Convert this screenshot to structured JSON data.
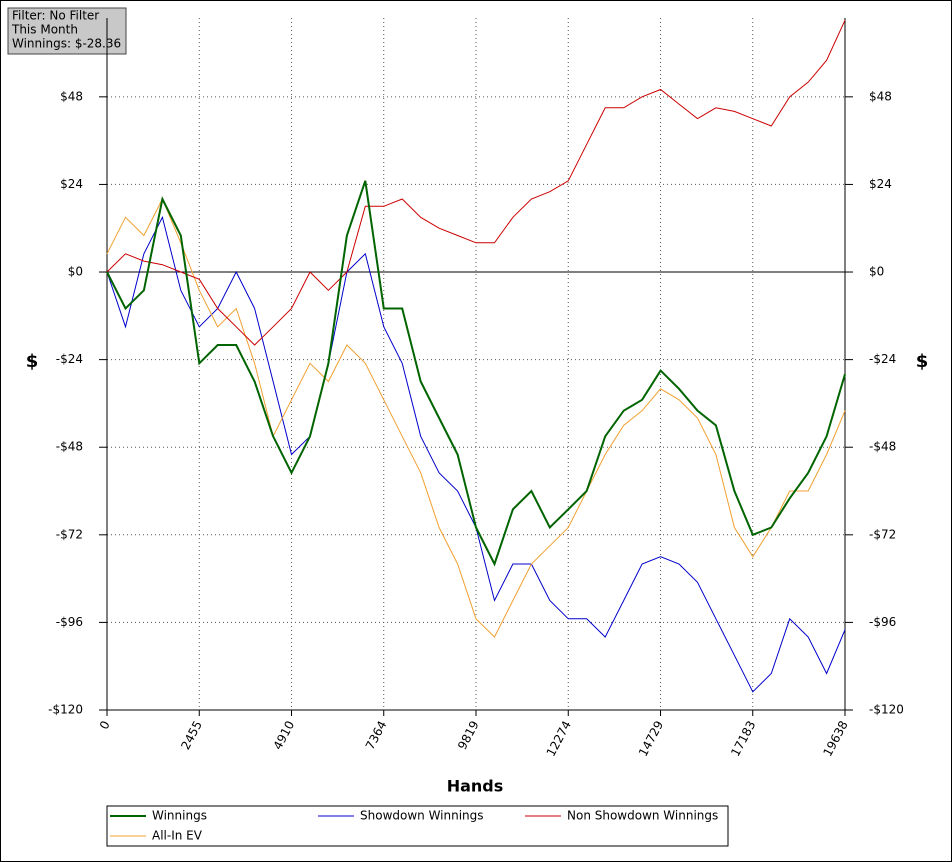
{
  "chart_data": {
    "type": "line",
    "annotations": [
      "Filter: No Filter",
      "This Month",
      "Winnings: $-28.36"
    ],
    "xlabel": "Hands",
    "ylabel": "$",
    "xlim": [
      0,
      19638
    ],
    "ylim": [
      -120,
      69.6
    ],
    "xticks": [
      0,
      2455,
      4910,
      7364,
      9819,
      12274,
      14729,
      17183,
      19638
    ],
    "yticks": [
      {
        "value": -120,
        "label": "-$120"
      },
      {
        "value": -96,
        "label": "-$96"
      },
      {
        "value": -72,
        "label": "-$72"
      },
      {
        "value": -48,
        "label": "-$48"
      },
      {
        "value": -24,
        "label": "-$24"
      },
      {
        "value": 0,
        "label": "$0"
      },
      {
        "value": 24,
        "label": "$24"
      },
      {
        "value": 48,
        "label": "$48"
      }
    ],
    "grid": true,
    "x": [
      0,
      491,
      982,
      1473,
      1964,
      2455,
      2946,
      3437,
      3928,
      4419,
      4910,
      5401,
      5892,
      6383,
      6874,
      7365,
      7856,
      8347,
      8838,
      9329,
      9820,
      10311,
      10802,
      11293,
      11784,
      12275,
      12766,
      13257,
      13748,
      14239,
      14730,
      15221,
      15712,
      16203,
      16694,
      17185,
      17676,
      18167,
      18658,
      19149,
      19638
    ],
    "series": [
      {
        "name": "Winnings",
        "color": "#006400",
        "values": [
          0,
          -10,
          -5,
          20,
          10,
          -25,
          -20,
          -20,
          -30,
          -45,
          -55,
          -45,
          -25,
          10,
          25,
          -10,
          -10,
          -30,
          -40,
          -50,
          -70,
          -80,
          -65,
          -60,
          -70,
          -65,
          -60,
          -45,
          -38,
          -35,
          -27,
          -32,
          -38,
          -42,
          -60,
          -72,
          -70,
          -62,
          -55,
          -45,
          -28
        ]
      },
      {
        "name": "Showdown Winnings",
        "color": "#0000cc",
        "values": [
          0,
          -15,
          5,
          15,
          -5,
          -15,
          -10,
          0,
          -10,
          -30,
          -50,
          -45,
          -25,
          0,
          5,
          -15,
          -25,
          -45,
          -55,
          -60,
          -70,
          -90,
          -80,
          -80,
          -90,
          -95,
          -95,
          -100,
          -90,
          -80,
          -78,
          -80,
          -85,
          -95,
          -105,
          -115,
          -110,
          -95,
          -100,
          -110,
          -98
        ]
      },
      {
        "name": "Non Showdown Winnings",
        "color": "#cc0000",
        "values": [
          0,
          5,
          3,
          2,
          0,
          -2,
          -10,
          -15,
          -20,
          -15,
          -10,
          0,
          -5,
          0,
          18,
          18,
          20,
          15,
          12,
          10,
          8,
          8,
          15,
          20,
          22,
          25,
          35,
          45,
          45,
          48,
          50,
          46,
          42,
          45,
          44,
          42,
          40,
          48,
          52,
          58,
          69
        ]
      },
      {
        "name": "All-In EV",
        "color": "#f0a030",
        "values": [
          5,
          15,
          10,
          20,
          8,
          -5,
          -15,
          -10,
          -25,
          -45,
          -35,
          -25,
          -30,
          -20,
          -25,
          -35,
          -45,
          -55,
          -70,
          -80,
          -95,
          -100,
          -90,
          -80,
          -75,
          -70,
          -60,
          -50,
          -42,
          -38,
          -32,
          -35,
          -40,
          -50,
          -70,
          -78,
          -70,
          -60,
          -60,
          -50,
          -38
        ]
      }
    ]
  }
}
